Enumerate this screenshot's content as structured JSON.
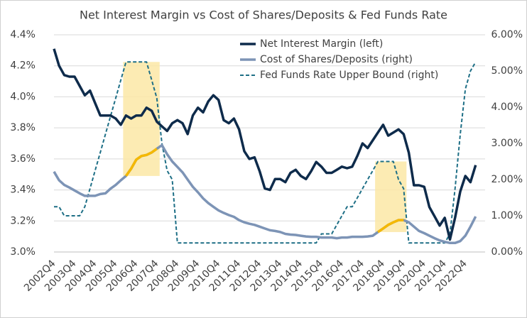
{
  "chart_data": {
    "type": "line",
    "title": "Net Interest Margin vs Cost of Shares/Deposits & Fed Funds Rate",
    "categories": [
      "2002Q4",
      null,
      null,
      null,
      "2003Q4",
      null,
      null,
      null,
      "2004Q4",
      null,
      null,
      null,
      "2005Q4",
      null,
      null,
      null,
      "2006Q4",
      null,
      null,
      null,
      "2007Q4",
      null,
      null,
      null,
      "2008Q4",
      null,
      null,
      null,
      "2009Q4",
      null,
      null,
      null,
      "2010Q4",
      null,
      null,
      null,
      "2011Q4",
      null,
      null,
      null,
      "2012Q4",
      null,
      null,
      null,
      "2013Q4",
      null,
      null,
      null,
      "2014Q4",
      null,
      null,
      null,
      "2015Q4",
      null,
      null,
      null,
      "2016Q4",
      null,
      null,
      null,
      "2017Q4",
      null,
      null,
      null,
      "2018Q4",
      null,
      null,
      null,
      "2019Q4",
      null,
      null,
      null,
      "2020Q4",
      null,
      null,
      null,
      "2021Q4",
      null,
      null,
      null,
      "2022Q4",
      null,
      null
    ],
    "series": [
      {
        "name": "Net Interest Margin (left)",
        "color": "#0e2b4b",
        "axis": "y",
        "dash": false,
        "values": [
          4.31,
          4.2,
          4.14,
          4.13,
          4.13,
          4.07,
          4.01,
          4.04,
          3.96,
          3.88,
          3.88,
          3.88,
          3.86,
          3.82,
          3.88,
          3.86,
          3.88,
          3.88,
          3.93,
          3.91,
          3.84,
          3.81,
          3.78,
          3.83,
          3.85,
          3.83,
          3.76,
          3.88,
          3.93,
          3.9,
          3.97,
          4.01,
          3.98,
          3.85,
          3.83,
          3.86,
          3.79,
          3.65,
          3.6,
          3.61,
          3.52,
          3.41,
          3.4,
          3.47,
          3.47,
          3.45,
          3.51,
          3.53,
          3.49,
          3.47,
          3.52,
          3.58,
          3.55,
          3.51,
          3.51,
          3.53,
          3.55,
          3.54,
          3.55,
          3.62,
          3.7,
          3.67,
          3.72,
          3.77,
          3.82,
          3.75,
          3.77,
          3.79,
          3.76,
          3.64,
          3.43,
          3.43,
          3.42,
          3.29,
          3.23,
          3.17,
          3.22,
          3.08,
          3.22,
          3.39,
          3.49,
          3.45,
          3.56
        ]
      },
      {
        "name": "Cost of Shares/Deposits (right)",
        "color": "#7d94b6",
        "axis": "y2",
        "dash": false,
        "values": [
          2.22,
          1.98,
          1.85,
          1.78,
          1.7,
          1.62,
          1.55,
          1.55,
          1.55,
          1.6,
          1.62,
          1.75,
          1.85,
          1.98,
          2.1,
          2.3,
          2.55,
          2.65,
          2.68,
          2.75,
          2.85,
          2.95,
          2.7,
          2.5,
          2.35,
          2.2,
          2.0,
          1.8,
          1.65,
          1.48,
          1.35,
          1.25,
          1.15,
          1.08,
          1.02,
          0.97,
          0.88,
          0.82,
          0.78,
          0.75,
          0.7,
          0.65,
          0.6,
          0.58,
          0.55,
          0.5,
          0.48,
          0.47,
          0.45,
          0.43,
          0.42,
          0.42,
          0.4,
          0.4,
          0.4,
          0.38,
          0.4,
          0.4,
          0.42,
          0.42,
          0.42,
          0.43,
          0.45,
          0.55,
          0.65,
          0.75,
          0.82,
          0.88,
          0.88,
          0.82,
          0.7,
          0.58,
          0.52,
          0.45,
          0.38,
          0.32,
          0.28,
          0.25,
          0.25,
          0.3,
          0.45,
          0.7,
          0.98
        ]
      },
      {
        "name": "Fed Funds Rate Upper Bound (right)",
        "color": "#1e6f86",
        "axis": "y2",
        "dash": true,
        "values": [
          1.25,
          1.25,
          1.0,
          1.0,
          1.0,
          1.0,
          1.25,
          1.75,
          2.25,
          2.75,
          3.25,
          3.75,
          4.25,
          4.75,
          5.25,
          5.25,
          5.25,
          5.25,
          5.25,
          4.75,
          4.25,
          3.0,
          2.25,
          2.0,
          0.25,
          0.25,
          0.25,
          0.25,
          0.25,
          0.25,
          0.25,
          0.25,
          0.25,
          0.25,
          0.25,
          0.25,
          0.25,
          0.25,
          0.25,
          0.25,
          0.25,
          0.25,
          0.25,
          0.25,
          0.25,
          0.25,
          0.25,
          0.25,
          0.25,
          0.25,
          0.25,
          0.25,
          0.5,
          0.5,
          0.5,
          0.75,
          1.0,
          1.25,
          1.25,
          1.5,
          1.75,
          2.0,
          2.25,
          2.5,
          2.5,
          2.5,
          2.5,
          2.0,
          1.75,
          0.25,
          0.25,
          0.25,
          0.25,
          0.25,
          0.25,
          0.25,
          0.25,
          0.5,
          1.75,
          3.25,
          4.5,
          5.0,
          5.25
        ]
      }
    ],
    "highlights": [
      {
        "start": 14,
        "end": 20,
        "color": "#fce8a6",
        "line_color": "#f5b800"
      },
      {
        "start": 63,
        "end": 68,
        "color": "#fce8a6",
        "line_color": "#f5b800"
      }
    ],
    "ylim": [
      3.0,
      4.4
    ],
    "yticks": [
      {
        "value": 3.0,
        "label": "3.0%"
      },
      {
        "value": 3.2,
        "label": "3.2%"
      },
      {
        "value": 3.4,
        "label": "3.4%"
      },
      {
        "value": 3.6,
        "label": "3.6%"
      },
      {
        "value": 3.8,
        "label": "3.8%"
      },
      {
        "value": 4.0,
        "label": "4.0%"
      },
      {
        "value": 4.2,
        "label": "4.2%"
      },
      {
        "value": 4.4,
        "label": "4.4%"
      }
    ],
    "y2lim": [
      0,
      6
    ],
    "y2ticks": [
      {
        "value": 0,
        "label": "0.00%"
      },
      {
        "value": 1,
        "label": "1.00%"
      },
      {
        "value": 2,
        "label": "2.00%"
      },
      {
        "value": 3,
        "label": "3.00%"
      },
      {
        "value": 4,
        "label": "4.00%"
      },
      {
        "value": 5,
        "label": "5.00%"
      },
      {
        "value": 6,
        "label": "6.00%"
      }
    ],
    "grid": true,
    "legend": "top"
  }
}
